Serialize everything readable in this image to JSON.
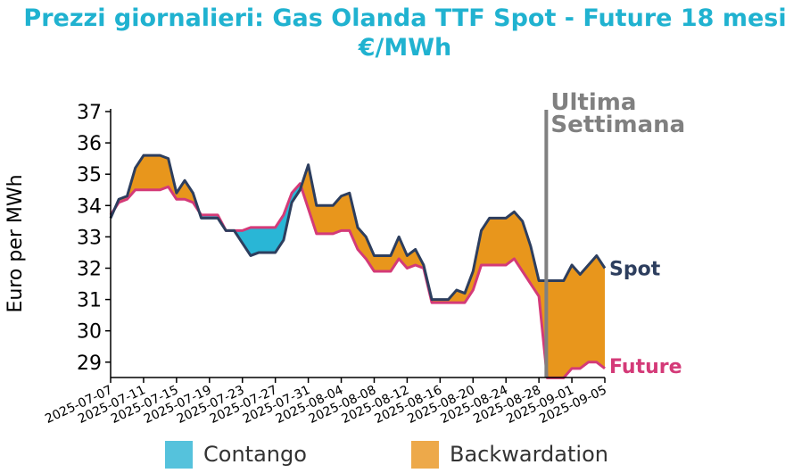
{
  "chart_data": {
    "type": "area",
    "title": "Prezzi giornalieri: Gas Olanda TTF Spot - Future 18 mesi",
    "subtitle": "€/MWh",
    "ylabel": "Euro per MWh",
    "xlabel": "",
    "ylim": [
      28.5,
      37
    ],
    "yticks": [
      29,
      30,
      31,
      32,
      33,
      34,
      35,
      36,
      37
    ],
    "xlim": [
      "2025-07-07",
      "2025-09-05"
    ],
    "xticks": [
      "2025-07-07",
      "2025-07-11",
      "2025-07-15",
      "2025-07-19",
      "2025-07-23",
      "2025-07-27",
      "2025-07-31",
      "2025-08-04",
      "2025-08-08",
      "2025-08-12",
      "2025-08-16",
      "2025-08-20",
      "2025-08-24",
      "2025-08-28",
      "2025-09-01",
      "2025-09-05"
    ],
    "grid": false,
    "legend_position": "bottom",
    "x": [
      "2025-07-07",
      "2025-07-08",
      "2025-07-09",
      "2025-07-10",
      "2025-07-11",
      "2025-07-12",
      "2025-07-13",
      "2025-07-14",
      "2025-07-15",
      "2025-07-16",
      "2025-07-17",
      "2025-07-18",
      "2025-07-19",
      "2025-07-20",
      "2025-07-21",
      "2025-07-22",
      "2025-07-23",
      "2025-07-24",
      "2025-07-25",
      "2025-07-26",
      "2025-07-27",
      "2025-07-28",
      "2025-07-29",
      "2025-07-30",
      "2025-07-31",
      "2025-08-01",
      "2025-08-02",
      "2025-08-03",
      "2025-08-04",
      "2025-08-05",
      "2025-08-06",
      "2025-08-07",
      "2025-08-08",
      "2025-08-09",
      "2025-08-10",
      "2025-08-11",
      "2025-08-12",
      "2025-08-13",
      "2025-08-14",
      "2025-08-15",
      "2025-08-16",
      "2025-08-17",
      "2025-08-18",
      "2025-08-19",
      "2025-08-20",
      "2025-08-21",
      "2025-08-22",
      "2025-08-23",
      "2025-08-24",
      "2025-08-25",
      "2025-08-26",
      "2025-08-27",
      "2025-08-28",
      "2025-08-29",
      "2025-08-30",
      "2025-08-31",
      "2025-09-01",
      "2025-09-02",
      "2025-09-03",
      "2025-09-04",
      "2025-09-05"
    ],
    "series": [
      {
        "name": "Spot",
        "color": "#2d3e5e",
        "values": [
          33.6,
          34.2,
          34.3,
          35.2,
          35.6,
          35.6,
          35.6,
          35.5,
          34.4,
          34.8,
          34.4,
          33.6,
          33.6,
          33.6,
          33.2,
          33.2,
          32.8,
          32.4,
          32.5,
          32.5,
          32.5,
          32.9,
          34.1,
          34.5,
          35.3,
          34.0,
          34.0,
          34.0,
          34.3,
          34.4,
          33.3,
          33.0,
          32.4,
          32.4,
          32.4,
          33.0,
          32.4,
          32.6,
          32.1,
          31.0,
          31.0,
          31.0,
          31.3,
          31.2,
          31.9,
          33.2,
          33.6,
          33.6,
          33.6,
          33.8,
          33.5,
          32.7,
          31.6,
          31.6,
          31.6,
          31.6,
          32.1,
          31.8,
          32.1,
          32.4,
          32.0
        ]
      },
      {
        "name": "Future",
        "color": "#d43a78",
        "values": [
          33.7,
          34.1,
          34.2,
          34.5,
          34.5,
          34.5,
          34.5,
          34.6,
          34.2,
          34.2,
          34.1,
          33.7,
          33.7,
          33.7,
          33.2,
          33.2,
          33.2,
          33.3,
          33.3,
          33.3,
          33.3,
          33.7,
          34.4,
          34.7,
          33.9,
          33.1,
          33.1,
          33.1,
          33.2,
          33.2,
          32.6,
          32.3,
          31.9,
          31.9,
          31.9,
          32.3,
          32.0,
          32.1,
          32.0,
          30.9,
          30.9,
          30.9,
          30.9,
          30.9,
          31.3,
          32.1,
          32.1,
          32.1,
          32.1,
          32.3,
          31.9,
          31.5,
          31.1,
          28.5,
          28.5,
          28.5,
          28.8,
          28.8,
          29.0,
          29.0,
          28.8
        ]
      }
    ],
    "fill_colors": {
      "contango": "#29b6d6",
      "backwardation": "#e8961c"
    },
    "legend": [
      {
        "label": "Contango",
        "color": "#55c2dc"
      },
      {
        "label": "Backwardation",
        "color": "#eda94a"
      }
    ],
    "annotation": {
      "x": "2025-08-29",
      "label_line1": "Ultima",
      "label_line2": "Settimana",
      "color": "#808080"
    }
  }
}
